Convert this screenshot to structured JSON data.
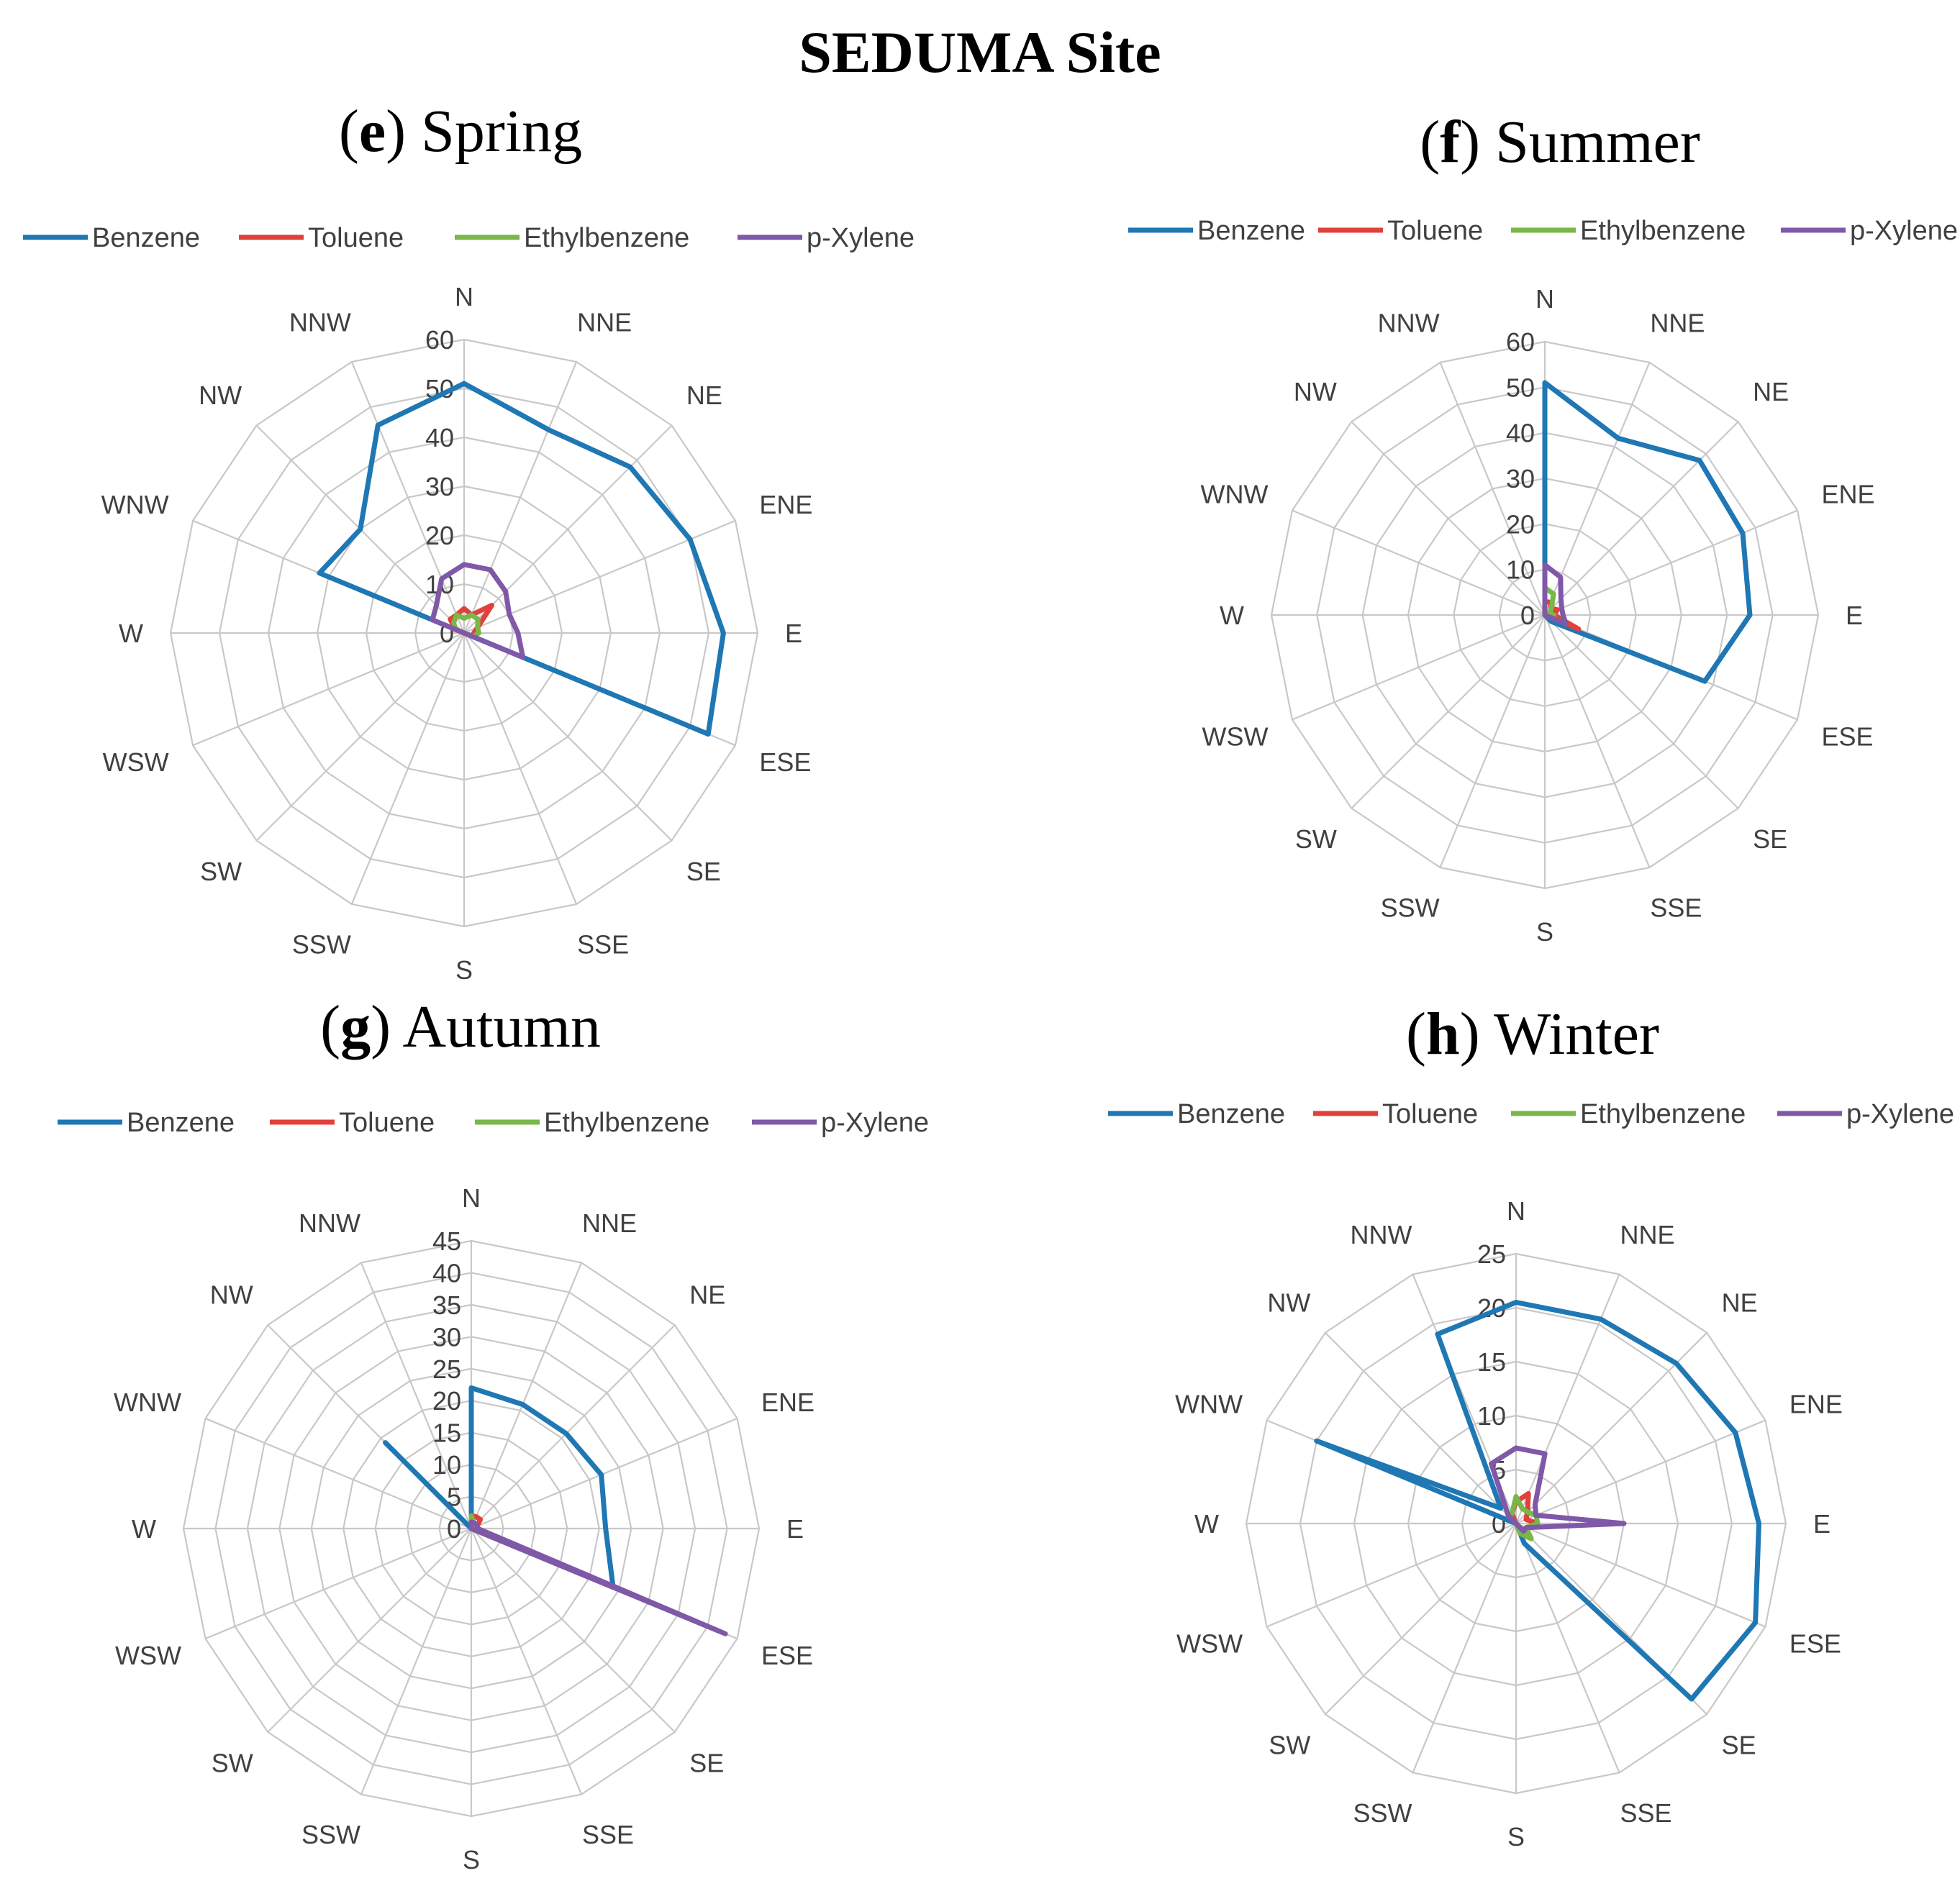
{
  "title": "SEDUMA Site",
  "colors": {
    "Benzene": "#1f77b4",
    "Toluene": "#e0413a",
    "Ethylbenzene": "#7ab648",
    "p-Xylene": "#8058a8"
  },
  "chart_data": [
    {
      "type": "radar",
      "panel": "e",
      "title": "Spring",
      "categories": [
        "N",
        "NNE",
        "NE",
        "ENE",
        "E",
        "ESE",
        "SE",
        "SSE",
        "S",
        "SSW",
        "SW",
        "WSW",
        "W",
        "WNW",
        "NW",
        "NNW"
      ],
      "ticks": [
        0,
        10,
        20,
        30,
        40,
        50,
        60
      ],
      "rmax": 60,
      "legend": [
        "Benzene",
        "Toluene",
        "Ethylbenzene",
        "p-Xylene"
      ],
      "series": [
        {
          "name": "Benzene",
          "values": [
            51,
            45,
            48,
            50,
            53,
            54,
            0,
            0,
            0,
            0,
            0,
            0,
            0,
            32,
            30,
            46
          ]
        },
        {
          "name": "Toluene",
          "values": [
            5,
            4,
            8,
            3,
            2,
            3,
            0,
            0,
            0,
            0,
            0,
            0,
            0,
            2,
            4,
            4
          ]
        },
        {
          "name": "Ethylbenzene",
          "values": [
            3,
            4,
            4,
            3,
            3,
            2,
            0,
            0,
            0,
            0,
            0,
            0,
            0,
            2,
            3,
            4
          ]
        },
        {
          "name": "p-Xylene",
          "values": [
            14,
            14,
            12,
            10,
            11,
            13,
            0,
            0,
            0,
            0,
            0,
            0,
            0,
            7,
            8,
            12
          ]
        }
      ]
    },
    {
      "type": "radar",
      "panel": "f",
      "title": "Summer",
      "categories": [
        "N",
        "NNE",
        "NE",
        "ENE",
        "E",
        "ESE",
        "SE",
        "SSE",
        "S",
        "SSW",
        "SW",
        "WSW",
        "W",
        "WNW",
        "NW",
        "NNW"
      ],
      "ticks": [
        0,
        10,
        20,
        30,
        40,
        50,
        60
      ],
      "rmax": 60,
      "legend": [
        "Benzene",
        "Toluene",
        "Ethylbenzene",
        "p-Xylene"
      ],
      "series": [
        {
          "name": "Benzene",
          "values": [
            51,
            42,
            48,
            47,
            45,
            38,
            2,
            0,
            0,
            0,
            0,
            0,
            0,
            0,
            0,
            0
          ]
        },
        {
          "name": "Toluene",
          "values": [
            3,
            3,
            2,
            3,
            2,
            8,
            0,
            0,
            0,
            0,
            0,
            0,
            0,
            0,
            0,
            0
          ]
        },
        {
          "name": "Ethylbenzene",
          "values": [
            6,
            5,
            2,
            1,
            2,
            2,
            0,
            0,
            0,
            0,
            0,
            0,
            0,
            0,
            0,
            0
          ]
        },
        {
          "name": "p-Xylene",
          "values": [
            11,
            9,
            5,
            4,
            4,
            5,
            0,
            0,
            0,
            0,
            0,
            0,
            0,
            0,
            0,
            0
          ]
        }
      ]
    },
    {
      "type": "radar",
      "panel": "g",
      "title": "Autumn",
      "categories": [
        "N",
        "NNE",
        "NE",
        "ENE",
        "E",
        "ESE",
        "SE",
        "SSE",
        "S",
        "SSW",
        "SW",
        "WSW",
        "W",
        "WNW",
        "NW",
        "NNW"
      ],
      "ticks": [
        0,
        5,
        10,
        15,
        20,
        25,
        30,
        35,
        40,
        45
      ],
      "rmax": 45,
      "legend": [
        "Benzene",
        "Toluene",
        "Ethylbenzene",
        "p-Xylene"
      ],
      "series": [
        {
          "name": "Benzene",
          "values": [
            22,
            21,
            21,
            22,
            21,
            24,
            0,
            0,
            0,
            0,
            0,
            0,
            0,
            0,
            19,
            0
          ]
        },
        {
          "name": "Toluene",
          "values": [
            2,
            2,
            2,
            1,
            1,
            3,
            0,
            0,
            0,
            0,
            0,
            0,
            0,
            0,
            0,
            0
          ]
        },
        {
          "name": "Ethylbenzene",
          "values": [
            2,
            1,
            1,
            1,
            1,
            15,
            0,
            0,
            0,
            0,
            0,
            0,
            0,
            0,
            0,
            0
          ]
        },
        {
          "name": "p-Xylene",
          "values": [
            1,
            1,
            1,
            1,
            1,
            43,
            0,
            0,
            0,
            0,
            0,
            0,
            0,
            0,
            0,
            0
          ]
        }
      ]
    },
    {
      "type": "radar",
      "panel": "h",
      "title": "Winter",
      "categories": [
        "N",
        "NNE",
        "NE",
        "ENE",
        "E",
        "ESE",
        "SE",
        "SSE",
        "S",
        "SSW",
        "SW",
        "WSW",
        "W",
        "WNW",
        "NW",
        "NNW"
      ],
      "ticks": [
        0,
        5,
        10,
        15,
        20,
        25
      ],
      "rmax": 25,
      "legend": [
        "Benzene",
        "Toluene",
        "Ethylbenzene",
        "p-Xylene"
      ],
      "series": [
        {
          "name": "Benzene",
          "values": [
            20.5,
            20.5,
            21,
            22,
            22.5,
            24,
            23,
            2,
            0,
            0,
            0,
            0,
            0,
            20,
            2,
            19
          ]
        },
        {
          "name": "Toluene",
          "values": [
            2,
            3,
            1.5,
            1,
            2,
            1,
            1,
            0,
            0,
            0,
            0,
            0,
            0,
            0,
            0,
            1
          ]
        },
        {
          "name": "Ethylbenzene",
          "values": [
            2.5,
            1.5,
            1.5,
            2,
            2,
            1,
            2,
            1,
            0,
            0,
            0,
            0,
            0,
            0,
            1,
            1
          ]
        },
        {
          "name": "p-Xylene",
          "values": [
            7,
            7,
            2.5,
            2,
            10,
            1,
            1,
            0,
            0,
            0,
            0,
            0,
            0,
            0,
            1,
            6
          ]
        }
      ]
    }
  ]
}
